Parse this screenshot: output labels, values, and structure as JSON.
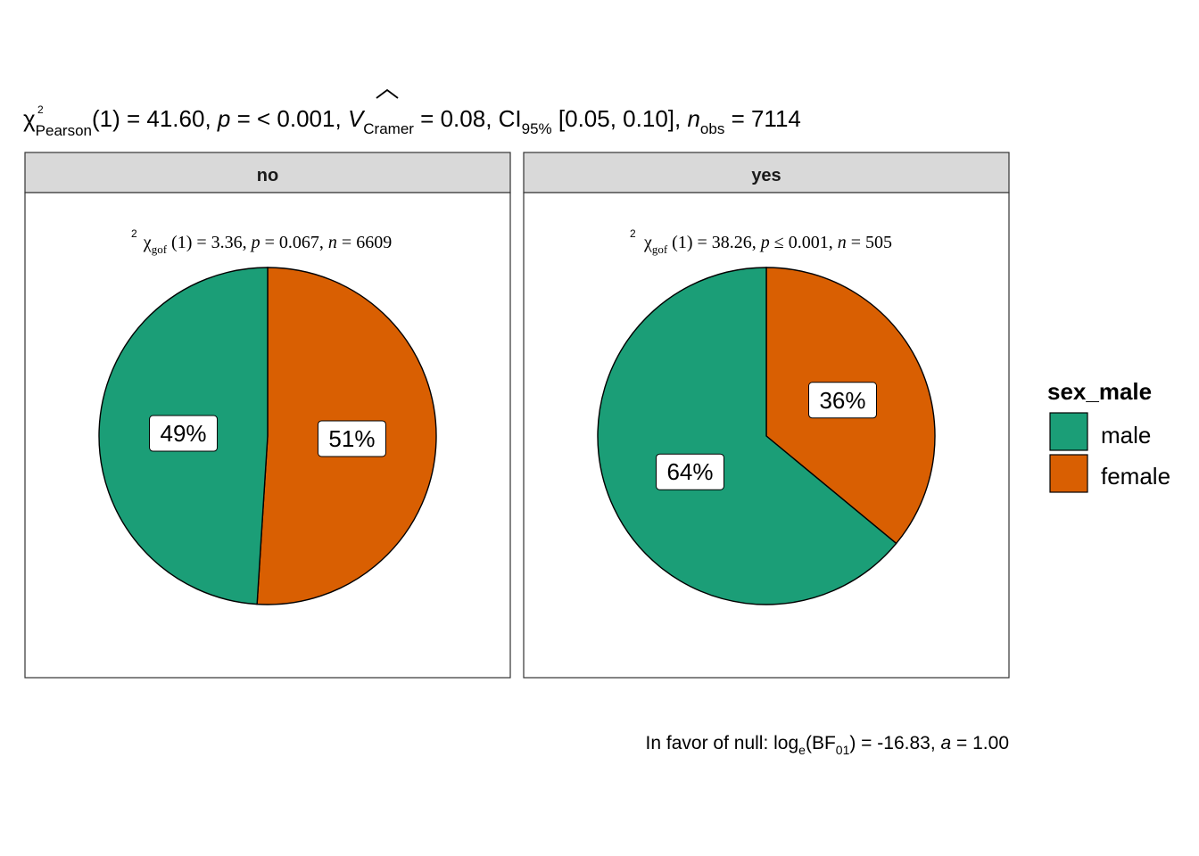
{
  "title": {
    "chi_symbol": "χ",
    "chi_sup": "2",
    "chi_sub": "Pearson",
    "df_text": "(1) = 41.60, ",
    "p_symbol": "p",
    "p_text": " = < 0.001, ",
    "v_symbol": "V",
    "v_sub": "Cramer",
    "v_text": " = 0.08, CI",
    "ci_sub": "95%",
    "ci_text": " [0.05, 0.10], ",
    "n_symbol": "n",
    "n_sub": "obs",
    "n_text": " = 7114"
  },
  "caption": {
    "prefix": "In favor of null: log",
    "log_sub": "e",
    "bf_text": "(BF",
    "bf_sub": "01",
    "mid_text": ") = -16.83, ",
    "a_symbol": "a",
    "end_text": " = 1.00"
  },
  "legend": {
    "title": "sex_male",
    "items": [
      {
        "label": "male",
        "color": "#1b9e77"
      },
      {
        "label": "female",
        "color": "#d95f02"
      }
    ]
  },
  "colors": {
    "male": "#1b9e77",
    "female": "#d95f02",
    "strip_bg": "#d9d9d9",
    "panel_border": "#333333"
  },
  "chart_data": [
    {
      "type": "pie",
      "facet": "no",
      "subtitle": {
        "chi": "χ",
        "sup": "2",
        "sub": "gof",
        "rest1": " (1) = 3.36,  ",
        "p": "p",
        "rest2": " = 0.067,  ",
        "n": "n",
        "rest3": " = 6609"
      },
      "categories": [
        "male",
        "female"
      ],
      "values": [
        49,
        51
      ],
      "labels": [
        "49%",
        "51%"
      ]
    },
    {
      "type": "pie",
      "facet": "yes",
      "subtitle": {
        "chi": "χ",
        "sup": "2",
        "sub": "gof",
        "rest1": " (1) = 38.26,  ",
        "p": "p",
        "rest2": " ≤ 0.001,  ",
        "n": "n",
        "rest3": " = 505"
      },
      "categories": [
        "male",
        "female"
      ],
      "values": [
        64,
        36
      ],
      "labels": [
        "64%",
        "36%"
      ]
    }
  ]
}
